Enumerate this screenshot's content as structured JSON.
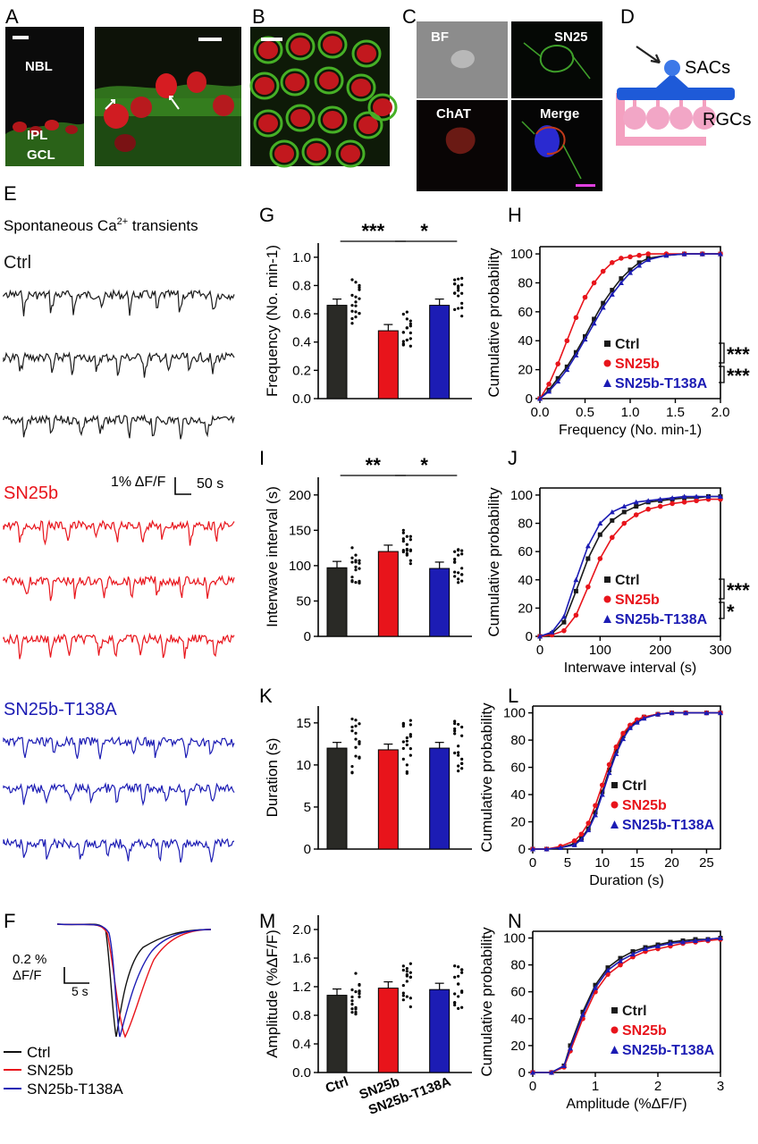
{
  "panels": {
    "A": {
      "label": "A",
      "layers": [
        "NBL",
        "IPL",
        "GCL"
      ]
    },
    "B": {
      "label": "B"
    },
    "C": {
      "label": "C",
      "tiles": [
        "BF",
        "SN25",
        "ChAT",
        "Merge"
      ]
    },
    "D": {
      "label": "D",
      "labels": [
        "SACs",
        "RGCs"
      ]
    },
    "E": {
      "label": "E",
      "title_prefix": "Spontaneous Ca",
      "title_sup": "2+",
      "title_suffix": " transients",
      "groups": [
        "Ctrl",
        "SN25b",
        "SN25b-T138A"
      ],
      "scale": "1% ΔF/F",
      "scale_time": "50 s"
    },
    "F": {
      "label": "F",
      "scale_amp": "0.2 %",
      "scale_amp2": "ΔF/F",
      "scale_time": "5 s",
      "legend": [
        "Ctrl",
        "SN25b",
        "SN25b-T138A"
      ]
    },
    "G": {
      "label": "G"
    },
    "H": {
      "label": "H"
    },
    "I": {
      "label": "I"
    },
    "J": {
      "label": "J"
    },
    "K": {
      "label": "K"
    },
    "L": {
      "label": "L"
    },
    "M": {
      "label": "M"
    },
    "N": {
      "label": "N"
    }
  },
  "colors": {
    "ctrl": "#1a1a1a",
    "sn25b": "#e8141b",
    "t138a": "#1c1cb4",
    "ctrl_bar": "#2a2a26"
  },
  "chart_data": [
    {
      "id": "G",
      "type": "bar",
      "ylabel": "Frequency (No. min-1)",
      "ylim": [
        0,
        1.1
      ],
      "yticks": [
        "0.0",
        "0.2",
        "0.4",
        "0.6",
        "0.8",
        "1.0"
      ],
      "categories": [
        "Ctrl",
        "SN25b",
        "SN25b-T138A"
      ],
      "values": [
        0.66,
        0.48,
        0.66
      ],
      "significance": [
        "***",
        "*"
      ]
    },
    {
      "id": "H",
      "type": "line",
      "ylabel": "Cumulative probability",
      "xlabel": "Frequency (No. min-1)",
      "xlim": [
        0,
        2.0
      ],
      "ylim": [
        0,
        105
      ],
      "xticks": [
        "0.0",
        "0.5",
        "1.0",
        "1.5",
        "2.0"
      ],
      "yticks": [
        "0",
        "20",
        "40",
        "60",
        "80",
        "100"
      ],
      "legend": [
        "Ctrl",
        "SN25b",
        "SN25b-T138A"
      ],
      "significance": [
        "***",
        "***"
      ],
      "series": [
        {
          "name": "Ctrl",
          "x": [
            0,
            0.1,
            0.2,
            0.3,
            0.4,
            0.5,
            0.6,
            0.7,
            0.8,
            0.9,
            1.0,
            1.1,
            1.2,
            1.4,
            1.6,
            1.8,
            2.0
          ],
          "y": [
            0,
            6,
            14,
            22,
            32,
            43,
            55,
            66,
            75,
            83,
            89,
            94,
            97,
            99,
            100,
            100,
            100
          ]
        },
        {
          "name": "SN25b",
          "x": [
            0,
            0.1,
            0.2,
            0.3,
            0.4,
            0.5,
            0.6,
            0.7,
            0.8,
            0.9,
            1.0,
            1.1,
            1.2,
            1.4,
            1.6,
            1.8,
            2.0
          ],
          "y": [
            0,
            10,
            24,
            40,
            56,
            70,
            80,
            88,
            94,
            97,
            98,
            99,
            100,
            100,
            100,
            100,
            100
          ]
        },
        {
          "name": "SN25b-T138A",
          "x": [
            0,
            0.1,
            0.2,
            0.3,
            0.4,
            0.5,
            0.6,
            0.7,
            0.8,
            0.9,
            1.0,
            1.1,
            1.2,
            1.4,
            1.6,
            1.8,
            2.0
          ],
          "y": [
            0,
            5,
            12,
            20,
            30,
            41,
            52,
            63,
            72,
            80,
            87,
            92,
            96,
            99,
            100,
            100,
            100
          ]
        }
      ]
    },
    {
      "id": "I",
      "type": "bar",
      "ylabel": "Interwave interval (s)",
      "ylim": [
        0,
        225
      ],
      "yticks": [
        "0",
        "50",
        "100",
        "150",
        "200"
      ],
      "categories": [
        "Ctrl",
        "SN25b",
        "SN25b-T138A"
      ],
      "values": [
        97,
        120,
        96
      ],
      "significance": [
        "**",
        "*"
      ]
    },
    {
      "id": "J",
      "type": "line",
      "ylabel": "Cumulative probability",
      "xlabel": "Interwave interval (s)",
      "xlim": [
        0,
        300
      ],
      "ylim": [
        0,
        105
      ],
      "xticks": [
        "0",
        "100",
        "200",
        "300"
      ],
      "yticks": [
        "0",
        "20",
        "40",
        "60",
        "80",
        "100"
      ],
      "legend": [
        "Ctrl",
        "SN25b",
        "SN25b-T138A"
      ],
      "significance": [
        "***",
        "*"
      ],
      "series": [
        {
          "name": "Ctrl",
          "x": [
            0,
            20,
            40,
            60,
            80,
            100,
            120,
            140,
            160,
            180,
            200,
            220,
            240,
            260,
            280,
            300
          ],
          "y": [
            0,
            2,
            10,
            32,
            55,
            72,
            82,
            88,
            92,
            95,
            96,
            97,
            98,
            98,
            99,
            99
          ]
        },
        {
          "name": "SN25b",
          "x": [
            0,
            20,
            40,
            60,
            80,
            100,
            120,
            140,
            160,
            180,
            200,
            220,
            240,
            260,
            280,
            300
          ],
          "y": [
            0,
            1,
            4,
            15,
            35,
            55,
            70,
            80,
            86,
            90,
            92,
            94,
            95,
            96,
            97,
            97
          ]
        },
        {
          "name": "SN25b-T138A",
          "x": [
            0,
            20,
            40,
            60,
            80,
            100,
            120,
            140,
            160,
            180,
            200,
            220,
            240,
            260,
            280,
            300
          ],
          "y": [
            0,
            3,
            14,
            40,
            64,
            80,
            88,
            92,
            95,
            96,
            97,
            98,
            99,
            99,
            99,
            99
          ]
        }
      ]
    },
    {
      "id": "K",
      "type": "bar",
      "ylabel": "Duration (s)",
      "ylim": [
        0,
        17
      ],
      "yticks": [
        "0",
        "5",
        "10",
        "15"
      ],
      "categories": [
        "Ctrl",
        "SN25b",
        "SN25b-T138A"
      ],
      "values": [
        12.0,
        11.8,
        12.0
      ]
    },
    {
      "id": "L",
      "type": "line",
      "ylabel": "Cumulative probability",
      "xlabel": "Duration (s)",
      "xlim": [
        0,
        27
      ],
      "ylim": [
        0,
        105
      ],
      "xticks": [
        "0",
        "5",
        "10",
        "15",
        "20",
        "25"
      ],
      "yticks": [
        "0",
        "20",
        "40",
        "60",
        "80",
        "100"
      ],
      "legend": [
        "Ctrl",
        "SN25b",
        "SN25b-T138A"
      ],
      "series": [
        {
          "name": "Ctrl",
          "x": [
            0,
            2,
            4,
            6,
            7,
            8,
            9,
            10,
            11,
            12,
            13,
            14,
            15,
            16,
            18,
            20,
            22,
            25,
            27
          ],
          "y": [
            0,
            0,
            1,
            4,
            8,
            15,
            27,
            42,
            58,
            72,
            83,
            90,
            94,
            97,
            99,
            100,
            100,
            100,
            100
          ]
        },
        {
          "name": "SN25b",
          "x": [
            0,
            2,
            4,
            6,
            7,
            8,
            9,
            10,
            11,
            12,
            13,
            14,
            15,
            16,
            18,
            20,
            22,
            25,
            27
          ],
          "y": [
            0,
            0,
            2,
            6,
            11,
            19,
            32,
            47,
            62,
            75,
            85,
            91,
            95,
            97,
            99,
            100,
            100,
            100,
            100
          ]
        },
        {
          "name": "SN25b-T138A",
          "x": [
            0,
            2,
            4,
            6,
            7,
            8,
            9,
            10,
            11,
            12,
            13,
            14,
            15,
            16,
            18,
            20,
            22,
            25,
            27
          ],
          "y": [
            0,
            0,
            1,
            3,
            7,
            14,
            25,
            40,
            56,
            70,
            81,
            89,
            93,
            96,
            99,
            100,
            100,
            100,
            100
          ]
        }
      ]
    },
    {
      "id": "M",
      "type": "bar",
      "ylabel": "Amplitude (%ΔF/F)",
      "ylim": [
        0,
        2.2
      ],
      "yticks": [
        "0.0",
        "0.4",
        "0.8",
        "1.2",
        "1.6",
        "2.0"
      ],
      "categories": [
        "Ctrl",
        "SN25b",
        "SN25b-T138A"
      ],
      "values": [
        1.08,
        1.18,
        1.16
      ]
    },
    {
      "id": "N",
      "type": "line",
      "ylabel": "Cumulative probability",
      "xlabel": "Amplitude (%ΔF/F)",
      "xlim": [
        0,
        3
      ],
      "ylim": [
        0,
        105
      ],
      "xticks": [
        "0",
        "1",
        "2",
        "3"
      ],
      "yticks": [
        "0",
        "20",
        "40",
        "60",
        "80",
        "100"
      ],
      "legend": [
        "Ctrl",
        "SN25b",
        "SN25b-T138A"
      ],
      "series": [
        {
          "name": "Ctrl",
          "x": [
            0,
            0.3,
            0.5,
            0.6,
            0.8,
            1.0,
            1.2,
            1.4,
            1.6,
            1.8,
            2.0,
            2.2,
            2.4,
            2.6,
            2.8,
            3.0
          ],
          "y": [
            0,
            0,
            5,
            20,
            45,
            65,
            78,
            85,
            90,
            93,
            95,
            97,
            98,
            99,
            99,
            100
          ]
        },
        {
          "name": "SN25b",
          "x": [
            0,
            0.3,
            0.5,
            0.6,
            0.8,
            1.0,
            1.2,
            1.4,
            1.6,
            1.8,
            2.0,
            2.2,
            2.4,
            2.6,
            2.8,
            3.0
          ],
          "y": [
            0,
            0,
            4,
            16,
            40,
            60,
            73,
            80,
            86,
            90,
            92,
            94,
            96,
            97,
            98,
            99
          ]
        },
        {
          "name": "SN25b-T138A",
          "x": [
            0,
            0.3,
            0.5,
            0.6,
            0.8,
            1.0,
            1.2,
            1.4,
            1.6,
            1.8,
            2.0,
            2.2,
            2.4,
            2.6,
            2.8,
            3.0
          ],
          "y": [
            0,
            0,
            5,
            18,
            43,
            63,
            76,
            83,
            88,
            92,
            94,
            96,
            97,
            98,
            99,
            100
          ]
        }
      ]
    }
  ]
}
